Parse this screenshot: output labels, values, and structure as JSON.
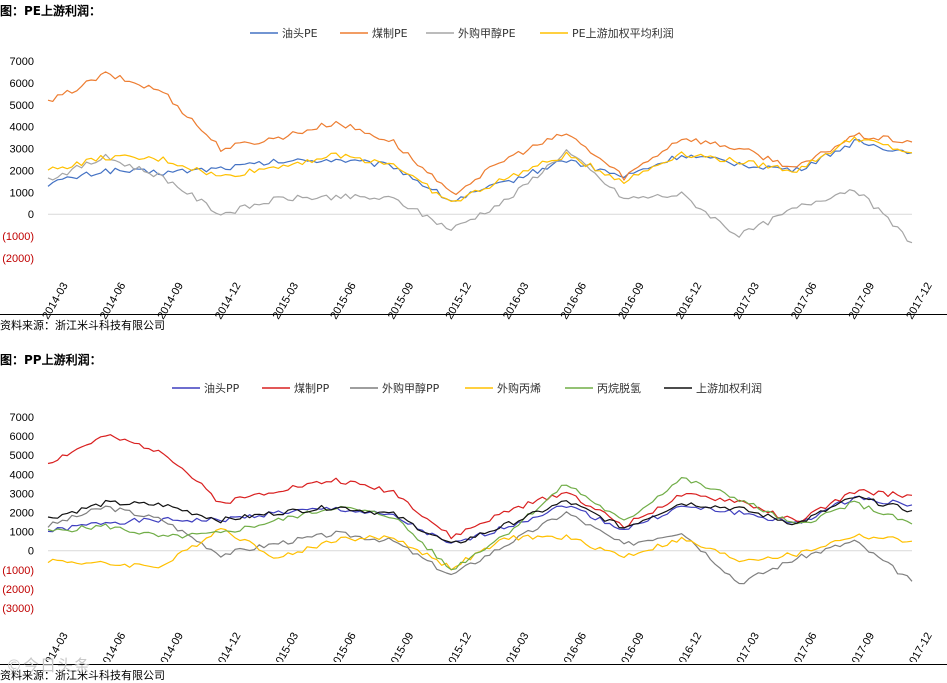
{
  "top": {
    "title": "图：PE上游利润：",
    "source": "资料来源：浙江米斗科技有限公司"
  },
  "bottom": {
    "title": "图：PP上游利润：",
    "source": "资料来源：浙江米斗科技有限公司"
  },
  "watermark": "©今日头条",
  "chart_data": [
    {
      "type": "line",
      "title": "",
      "xlabel": "",
      "ylabel": "",
      "ylim": [
        -2000,
        7000
      ],
      "yticks": [
        -2000,
        -1000,
        0,
        1000,
        2000,
        3000,
        4000,
        5000,
        6000,
        7000
      ],
      "ytick_labels": [
        "(2000)",
        "(1000)",
        "0",
        "1000",
        "2000",
        "3000",
        "4000",
        "5000",
        "6000",
        "7000"
      ],
      "x": [
        "2014-03",
        "2014-06",
        "2014-09",
        "2014-12",
        "2015-03",
        "2015-06",
        "2015-09",
        "2015-12",
        "2016-03",
        "2016-06",
        "2016-09",
        "2016-12",
        "2017-03",
        "2017-06",
        "2017-09",
        "2017-12"
      ],
      "legend_position": "top-center",
      "grid": false,
      "series": [
        {
          "name": "油头PE",
          "color": "#4472c4",
          "values": [
            1400,
            2000,
            1900,
            2100,
            2400,
            2500,
            2200,
            600,
            1500,
            2500,
            1700,
            2700,
            2300,
            2000,
            3300,
            2800
          ]
        },
        {
          "name": "煤制PE",
          "color": "#ed7d31",
          "values": [
            5100,
            6400,
            5600,
            3000,
            3500,
            4200,
            3300,
            900,
            2600,
            3700,
            1700,
            3500,
            3000,
            2100,
            3600,
            3300
          ]
        },
        {
          "name": "外购甲醇PE",
          "color": "#a5a5a5",
          "values": [
            1600,
            2600,
            1700,
            0,
            700,
            800,
            700,
            -700,
            700,
            2900,
            700,
            900,
            -1000,
            300,
            1200,
            -1300
          ]
        },
        {
          "name": "PE上游加权平均利润",
          "color": "#ffc000",
          "values": [
            2000,
            2600,
            2500,
            1700,
            2200,
            2700,
            2300,
            500,
            1700,
            2700,
            1500,
            2800,
            2400,
            2000,
            3500,
            2800
          ]
        }
      ]
    },
    {
      "type": "line",
      "title": "",
      "xlabel": "",
      "ylabel": "",
      "ylim": [
        -3000,
        7000
      ],
      "yticks": [
        -3000,
        -2000,
        -1000,
        0,
        1000,
        2000,
        3000,
        4000,
        5000,
        6000,
        7000
      ],
      "ytick_labels": [
        "(3000)",
        "(2000)",
        "(1000)",
        "0",
        "1000",
        "2000",
        "3000",
        "4000",
        "5000",
        "6000",
        "7000"
      ],
      "x": [
        "2014-03",
        "2014-06",
        "2014-09",
        "2014-12",
        "2015-03",
        "2015-06",
        "2015-09",
        "2015-12",
        "2016-03",
        "2016-06",
        "2016-09",
        "2016-12",
        "2017-03",
        "2017-06",
        "2017-09",
        "2017-12"
      ],
      "legend_position": "top-center",
      "grid": false,
      "series": [
        {
          "name": "油头PP",
          "color": "#3f3fbf",
          "values": [
            1000,
            1500,
            1600,
            1600,
            2000,
            2200,
            1800,
            300,
            1300,
            2400,
            1100,
            2300,
            2000,
            1400,
            2800,
            2400
          ]
        },
        {
          "name": "煤制PP",
          "color": "#d92020",
          "values": [
            4600,
            6000,
            5200,
            2500,
            3200,
            3700,
            3100,
            700,
            2100,
            3100,
            1300,
            2900,
            2600,
            1500,
            3100,
            2900
          ]
        },
        {
          "name": "外购甲醇PP",
          "color": "#7f7f7f",
          "values": [
            1300,
            2300,
            1600,
            -200,
            400,
            900,
            500,
            -1300,
            400,
            2000,
            300,
            1000,
            -1700,
            -400,
            500,
            -1600
          ]
        },
        {
          "name": "外购丙烯",
          "color": "#ffc000",
          "values": [
            -500,
            -700,
            -800,
            1200,
            -400,
            600,
            700,
            -900,
            700,
            700,
            -300,
            600,
            -500,
            -200,
            800,
            500
          ]
        },
        {
          "name": "丙烷脱氢",
          "color": "#70ad47",
          "values": [
            1000,
            1300,
            700,
            900,
            1600,
            2300,
            1800,
            -1000,
            1000,
            3500,
            1500,
            3800,
            2700,
            1300,
            2500,
            1400
          ]
        },
        {
          "name": "上游加权利润",
          "color": "#111111",
          "values": [
            1700,
            2500,
            2400,
            1600,
            2000,
            2300,
            1900,
            300,
            1400,
            2600,
            1200,
            2500,
            2200,
            1400,
            2800,
            2100
          ]
        }
      ]
    }
  ]
}
